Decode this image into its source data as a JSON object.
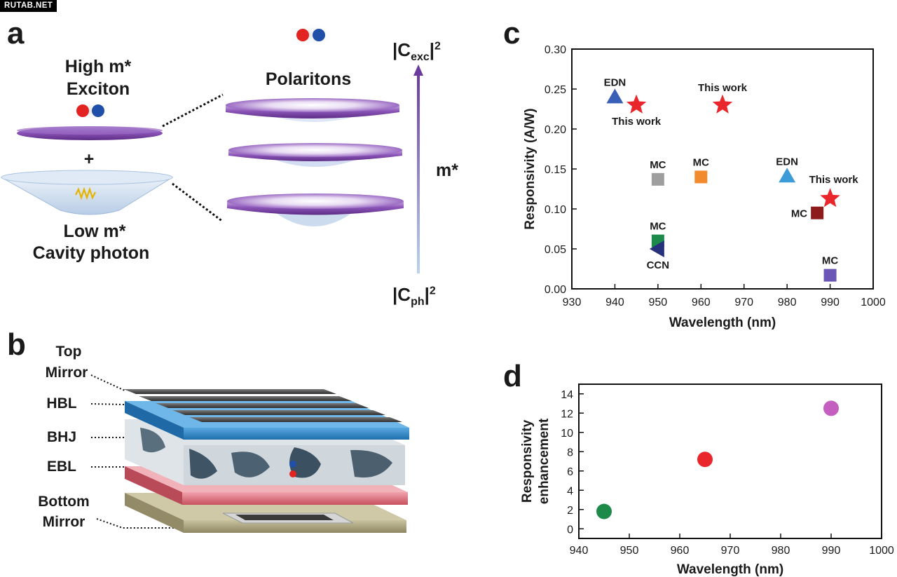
{
  "watermark": "RUTAB.NET",
  "panels": {
    "a": {
      "letter": "a",
      "high_mass": "High m*",
      "exciton": "Exciton",
      "plus": "+",
      "low_mass": "Low m*",
      "cavity_photon": "Cavity photon",
      "polaritons": "Polaritons",
      "mass_axis": "m*",
      "top_coeff": {
        "base": "|C",
        "sub": "exc",
        "tail": "|",
        "sup": "2"
      },
      "bottom_coeff": {
        "base": "|C",
        "sub": "ph",
        "tail": "|",
        "sup": "2"
      }
    },
    "b": {
      "letter": "b",
      "layers": [
        "Top Mirror",
        "HBL",
        "BHJ",
        "EBL",
        "Bottom Mirror"
      ]
    },
    "c": {
      "letter": "c"
    },
    "d": {
      "letter": "d"
    }
  },
  "colors": {
    "exciton_disc": "#7b3fa3",
    "cavity_photon_body": "#c9dcef",
    "hbl": "#2e86c8",
    "ebl": "#d9727f",
    "mirror": "#4a4a4a",
    "substrate": "#b3ab86",
    "hole_dot": "#e32222",
    "electron_dot": "#1f4fa8"
  },
  "chart_data": [
    {
      "type": "scatter",
      "panel": "c",
      "xlabel": "Wavelength (nm)",
      "ylabel": "Responsivity (A/W)",
      "xlim": [
        930,
        1000
      ],
      "ylim": [
        0,
        0.3
      ],
      "xticks": [
        930,
        940,
        950,
        960,
        970,
        980,
        990,
        1000
      ],
      "yticks": [
        "0.00",
        "0.05",
        "0.10",
        "0.15",
        "0.20",
        "0.25",
        "0.30"
      ],
      "grid": false,
      "points": [
        {
          "label": "EDN",
          "x": 940,
          "y": 0.24,
          "marker": "triangle-up",
          "color": "#3a5fb6",
          "label_pos": "above"
        },
        {
          "label": "This work",
          "x": 945,
          "y": 0.23,
          "marker": "star",
          "color": "#e8262b",
          "label_pos": "below"
        },
        {
          "label": "This work",
          "x": 965,
          "y": 0.23,
          "marker": "star",
          "color": "#e8262b",
          "label_pos": "above"
        },
        {
          "label": "MC",
          "x": 950,
          "y": 0.137,
          "marker": "square",
          "color": "#9e9e9e",
          "label_pos": "above"
        },
        {
          "label": "MC",
          "x": 960,
          "y": 0.14,
          "marker": "square",
          "color": "#f28a2e",
          "label_pos": "above"
        },
        {
          "label": "EDN",
          "x": 980,
          "y": 0.141,
          "marker": "triangle-up",
          "color": "#3d9bd8",
          "label_pos": "above"
        },
        {
          "label": "This work",
          "x": 990,
          "y": 0.113,
          "marker": "star",
          "color": "#e8262b",
          "label_pos": "above"
        },
        {
          "label": "MC",
          "x": 987,
          "y": 0.095,
          "marker": "square",
          "color": "#8e1b1b",
          "label_pos": "left"
        },
        {
          "label": "MC",
          "x": 950,
          "y": 0.06,
          "marker": "square",
          "color": "#1d8a4a",
          "label_pos": "above"
        },
        {
          "label": "CCN",
          "x": 950,
          "y": 0.05,
          "marker": "triangle-left",
          "color": "#27307a",
          "label_pos": "below"
        },
        {
          "label": "MC",
          "x": 990,
          "y": 0.017,
          "marker": "square",
          "color": "#6b56b5",
          "label_pos": "above"
        }
      ]
    },
    {
      "type": "scatter",
      "panel": "d",
      "xlabel": "Wavelength (nm)",
      "ylabel_lines": [
        "Responsivity",
        "enhancement"
      ],
      "xlim": [
        940,
        1000
      ],
      "ylim": [
        -1,
        15
      ],
      "xticks": [
        940,
        950,
        960,
        970,
        980,
        990,
        1000
      ],
      "yticks": [
        0,
        2,
        4,
        6,
        8,
        10,
        12,
        14
      ],
      "grid": false,
      "points": [
        {
          "x": 945,
          "y": 1.8,
          "color": "#1d8a4a"
        },
        {
          "x": 965,
          "y": 7.2,
          "color": "#e8262b"
        },
        {
          "x": 990,
          "y": 12.5,
          "color": "#c45fc0"
        }
      ]
    }
  ]
}
